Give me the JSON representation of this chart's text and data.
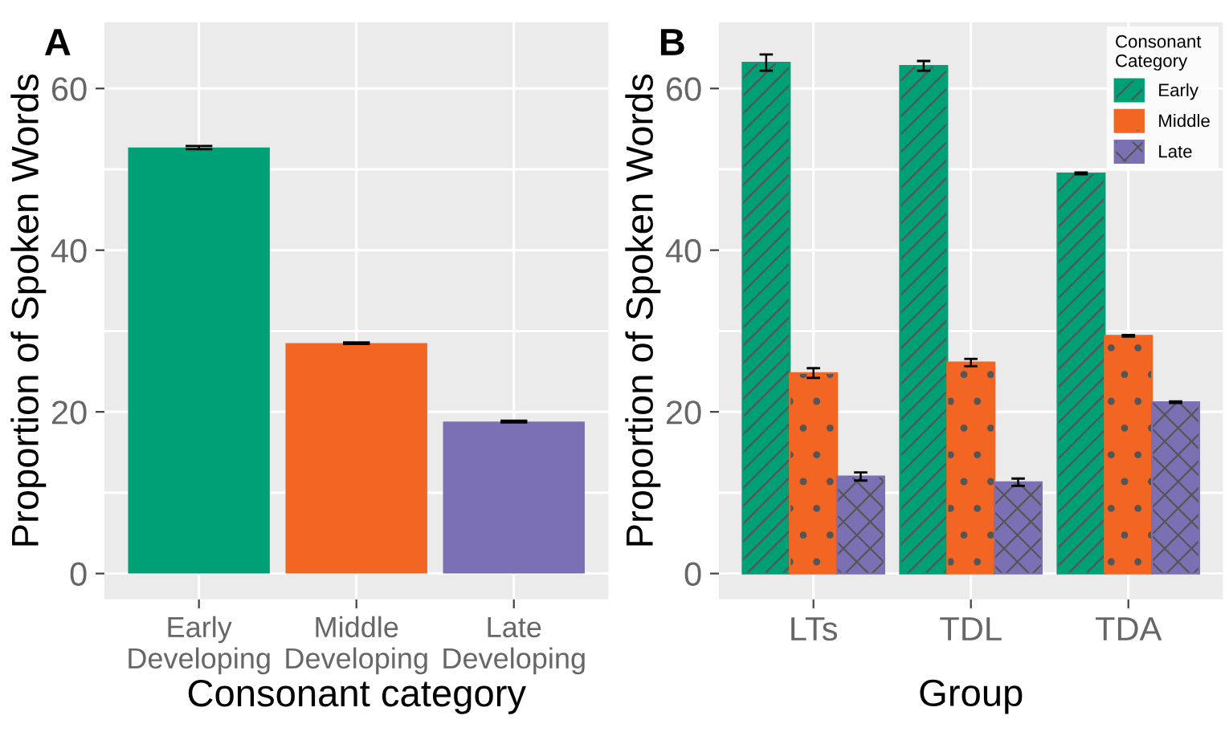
{
  "chart_data": [
    {
      "type": "bar",
      "title": "A",
      "xlabel": "Consonant category",
      "ylabel": "Proportion of Spoken Words",
      "categories": [
        "Early\nDeveloping",
        "Middle\nDeveloping",
        "Late\nDeveloping"
      ],
      "values": [
        52.7,
        28.5,
        18.8
      ],
      "errors": [
        0.2,
        0.1,
        0.1
      ],
      "colors": [
        "#00a077",
        "#f26522",
        "#7b70b3"
      ],
      "ylim": [
        -3.2,
        68.2
      ],
      "yticks": [
        0,
        {
          "value": 10,
          "label": null
        },
        20,
        {
          "value": 30,
          "label": null
        },
        40,
        {
          "value": 50,
          "label": null
        },
        60
      ],
      "grid": true,
      "legend": false
    },
    {
      "type": "bar",
      "title": "B",
      "xlabel": "Group",
      "ylabel": "Proportion of Spoken Words",
      "legend_title": "Consonant\nCategory",
      "categories": [
        "LTs",
        "TDL",
        "TDA"
      ],
      "series": [
        {
          "name": "Early",
          "color": "#00a077",
          "values": [
            63.2,
            62.8,
            49.5
          ],
          "errors": [
            1.0,
            0.6,
            0.1
          ]
        },
        {
          "name": "Middle",
          "color": "#f26522",
          "values": [
            24.8,
            26.1,
            29.4
          ],
          "errors": [
            0.6,
            0.45,
            0.1
          ]
        },
        {
          "name": "Late",
          "color": "#7b70b3",
          "values": [
            12.0,
            11.3,
            21.2
          ],
          "errors": [
            0.5,
            0.45,
            0.1
          ]
        }
      ],
      "ylim": [
        -3.2,
        68.2
      ],
      "yticks": [
        0,
        {
          "value": 10,
          "label": null
        },
        20,
        {
          "value": 30,
          "label": null
        },
        40,
        {
          "value": 50,
          "label": null
        },
        60
      ],
      "grid": true,
      "legend": "top right"
    }
  ]
}
